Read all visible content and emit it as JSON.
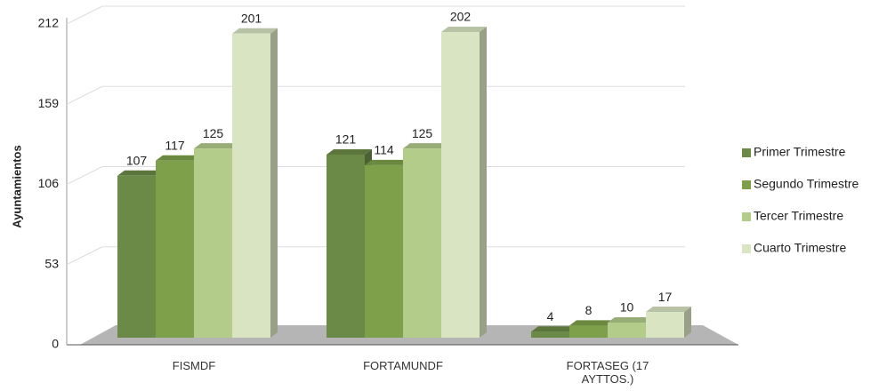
{
  "chart_data": {
    "type": "bar3d",
    "y_label": "Ayuntamientos",
    "categories": [
      "FISMDF",
      "FORTAMUNDF",
      "FORTASEG (17 AYTTOS.)"
    ],
    "series": [
      {
        "name": "Primer Trimestre",
        "color": "#6b8a48",
        "values": [
          107,
          121,
          4
        ]
      },
      {
        "name": "Segundo Trimestre",
        "color": "#7ea04a",
        "values": [
          117,
          114,
          8
        ]
      },
      {
        "name": "Tercer Trimestre",
        "color": "#b3cc8a",
        "values": [
          125,
          125,
          10
        ]
      },
      {
        "name": "Cuarto Trimestre",
        "color": "#d9e5c2",
        "values": [
          201,
          202,
          17
        ]
      }
    ],
    "ylim": [
      0,
      212
    ],
    "yticks": [
      0,
      53,
      106,
      159,
      212
    ],
    "grid": true,
    "legend": "right"
  }
}
